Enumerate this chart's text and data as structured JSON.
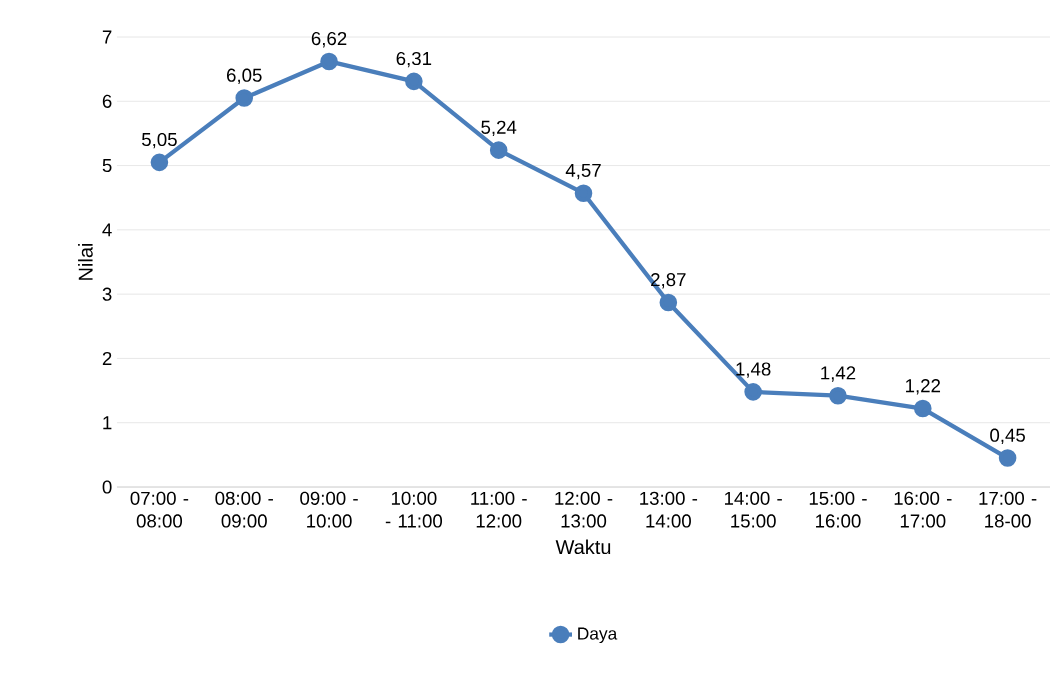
{
  "chart_data": {
    "type": "line",
    "xlabel": "Waktu",
    "ylabel": "Nilai",
    "categories": [
      "07:00 - 08:00",
      "08:00 - 09:00",
      "09:00 - 10:00",
      "10:00 - 11:00",
      "11:00 - 12:00",
      "12:00 - 13:00",
      "13:00 - 14:00",
      "14:00 - 15:00",
      "15:00 - 16:00",
      "16:00 - 17:00",
      "17:00 - 18-00"
    ],
    "series": [
      {
        "name": "Daya",
        "color": "#4a7ebb",
        "values": [
          5.05,
          6.05,
          6.62,
          6.31,
          5.24,
          4.57,
          2.87,
          1.48,
          1.42,
          1.22,
          0.45
        ],
        "value_labels": [
          "5,05",
          "6,05",
          "6,62",
          "6,31",
          "5,24",
          "4,57",
          "2,87",
          "1,48",
          "1,42",
          "1,22",
          "0,45"
        ]
      }
    ],
    "ylim": [
      0,
      7
    ],
    "yticks": [
      0,
      1,
      2,
      3,
      4,
      5,
      6,
      7
    ],
    "grid": "y",
    "legend": "bottom",
    "marker": "circle",
    "line_style": "solid"
  }
}
